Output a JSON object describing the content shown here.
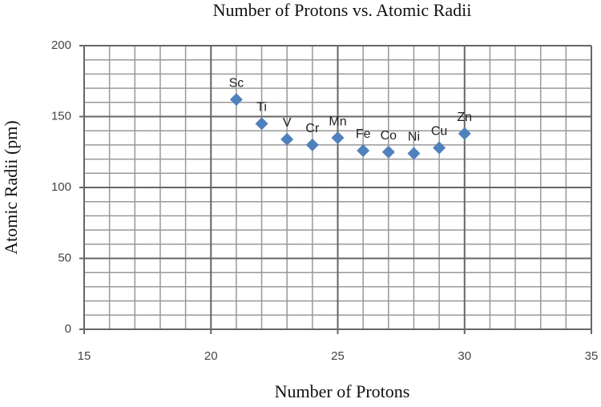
{
  "chart_data": {
    "type": "scatter",
    "title": "Number of Protons vs. Atomic Radii",
    "x_label": "Number of Protons",
    "y_label": "Atomic Radii (pm)",
    "series": [
      {
        "name": "Atomic Radii",
        "color": "#4f81bd",
        "x": [
          21,
          22,
          23,
          24,
          25,
          26,
          27,
          28,
          29,
          30
        ],
        "values": [
          162,
          145,
          134,
          130,
          135,
          126,
          125,
          124,
          128,
          138
        ],
        "labels": [
          "Sc",
          "Ti",
          "V",
          "Cr",
          "Mn",
          "Fe",
          "Co",
          "Ni",
          "Cu",
          "Zn"
        ]
      }
    ],
    "xlim": [
      15,
      35
    ],
    "xticks": [
      15,
      20,
      25,
      30,
      35
    ],
    "ylim": [
      0,
      200
    ],
    "yticks": [
      0,
      50,
      100,
      150,
      200
    ],
    "grid": true,
    "minor_grid": true
  }
}
